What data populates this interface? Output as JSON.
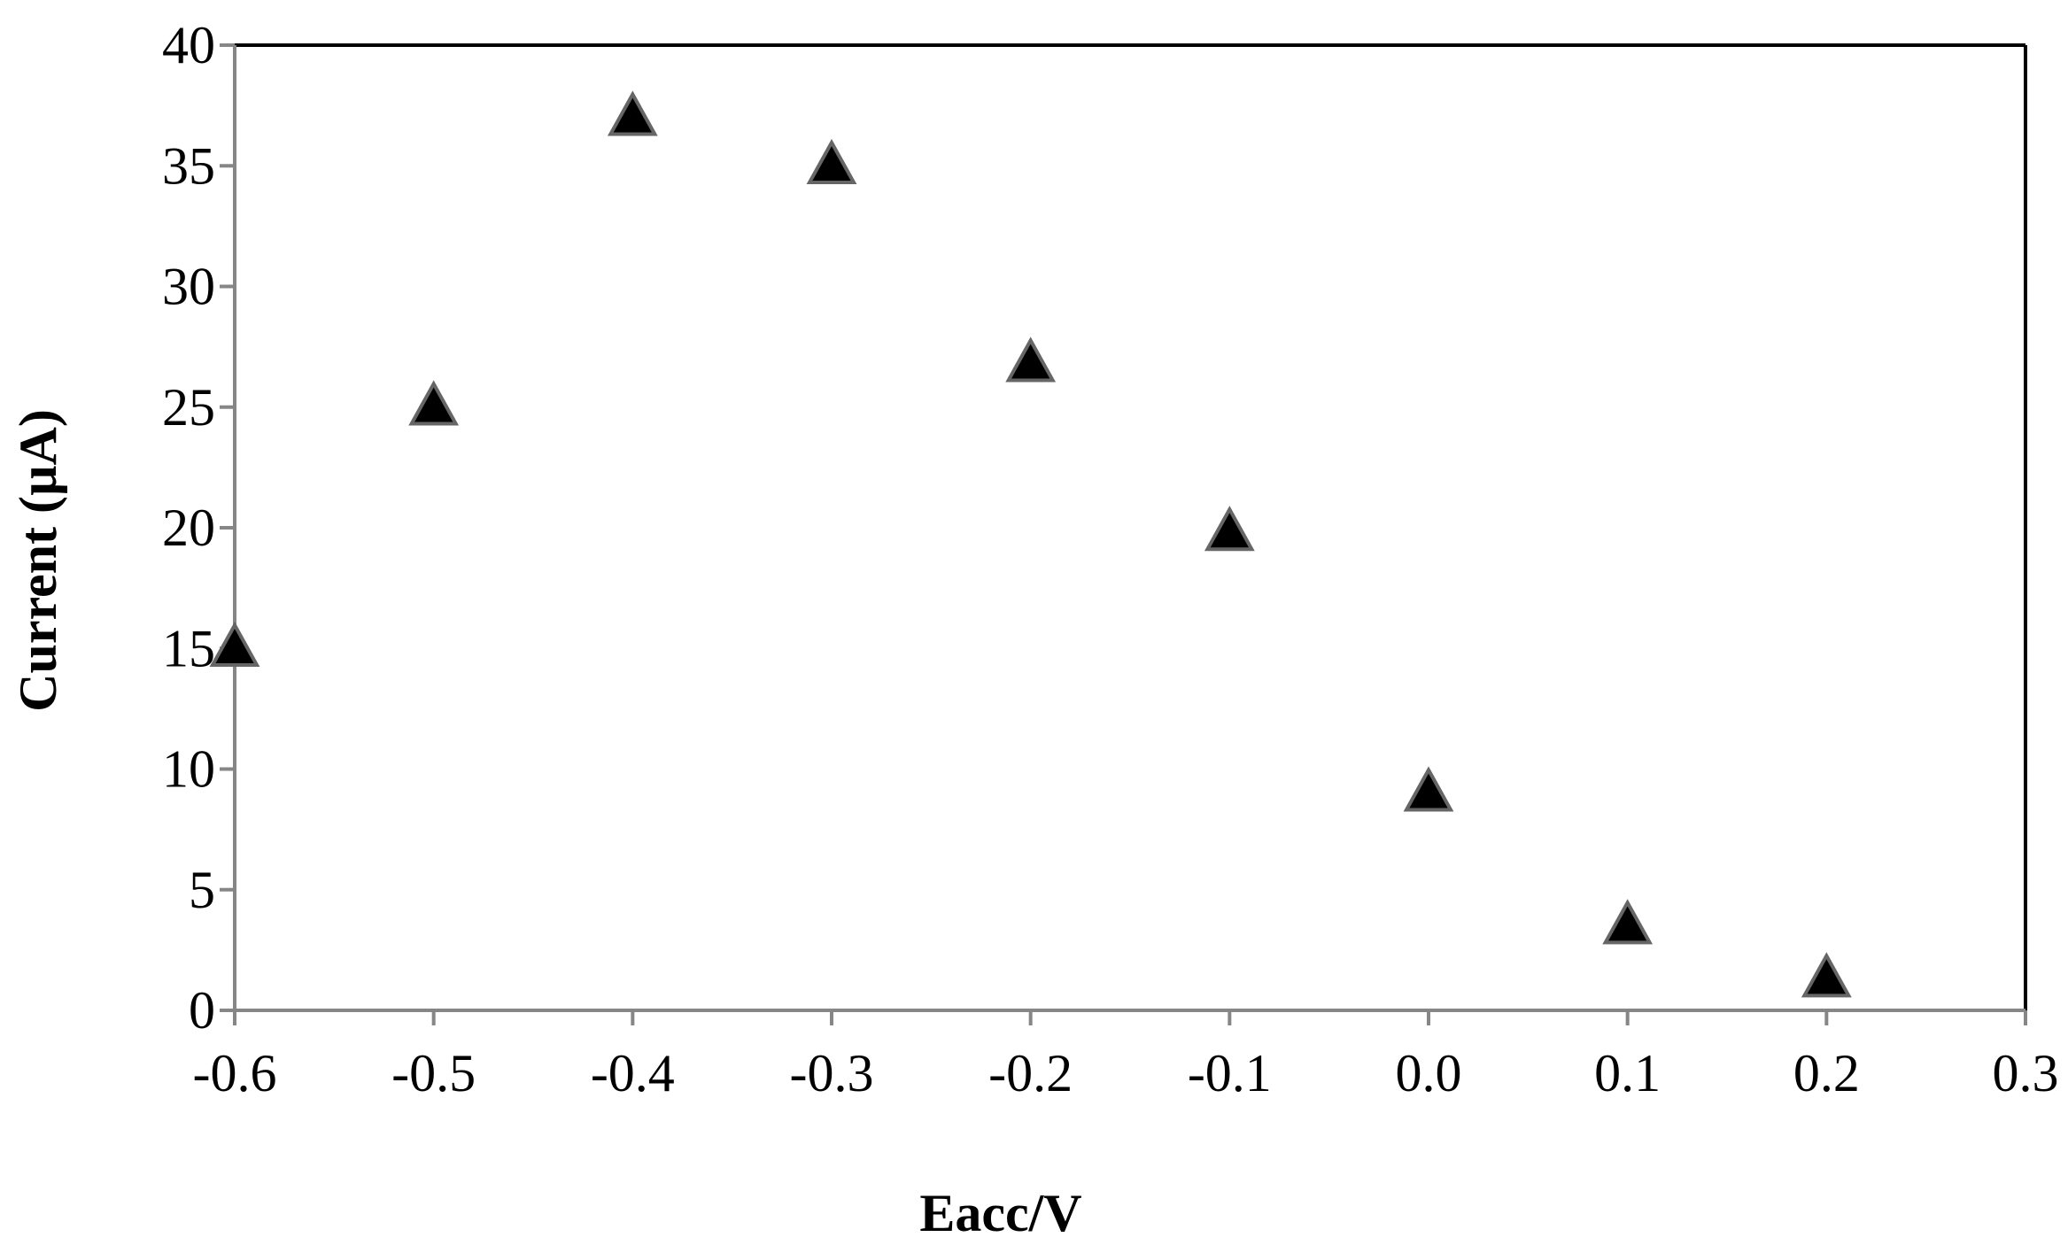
{
  "chart_data": {
    "type": "scatter",
    "title": "",
    "xlabel": "Eacc/V",
    "ylabel": "Current (µA)",
    "xlim": [
      -0.6,
      0.3
    ],
    "ylim": [
      0,
      40
    ],
    "x_ticks": [
      "-0.6",
      "-0.5",
      "-0.4",
      "-0.3",
      "-0.2",
      "-0.1",
      "0.0",
      "0.1",
      "0.2",
      "0.3"
    ],
    "y_ticks": [
      "0",
      "5",
      "10",
      "15",
      "20",
      "25",
      "30",
      "35",
      "40"
    ],
    "grid": false,
    "legend": "none",
    "marker": "triangle",
    "marker_color": "#000000",
    "series": [
      {
        "points": [
          {
            "x": -0.6,
            "y": 15.0
          },
          {
            "x": -0.5,
            "y": 25.0
          },
          {
            "x": -0.4,
            "y": 37.0
          },
          {
            "x": -0.3,
            "y": 35.0
          },
          {
            "x": -0.2,
            "y": 26.8
          },
          {
            "x": -0.1,
            "y": 19.8
          },
          {
            "x": 0.0,
            "y": 9.0
          },
          {
            "x": 0.1,
            "y": 3.5
          },
          {
            "x": 0.2,
            "y": 1.3
          }
        ]
      }
    ]
  }
}
